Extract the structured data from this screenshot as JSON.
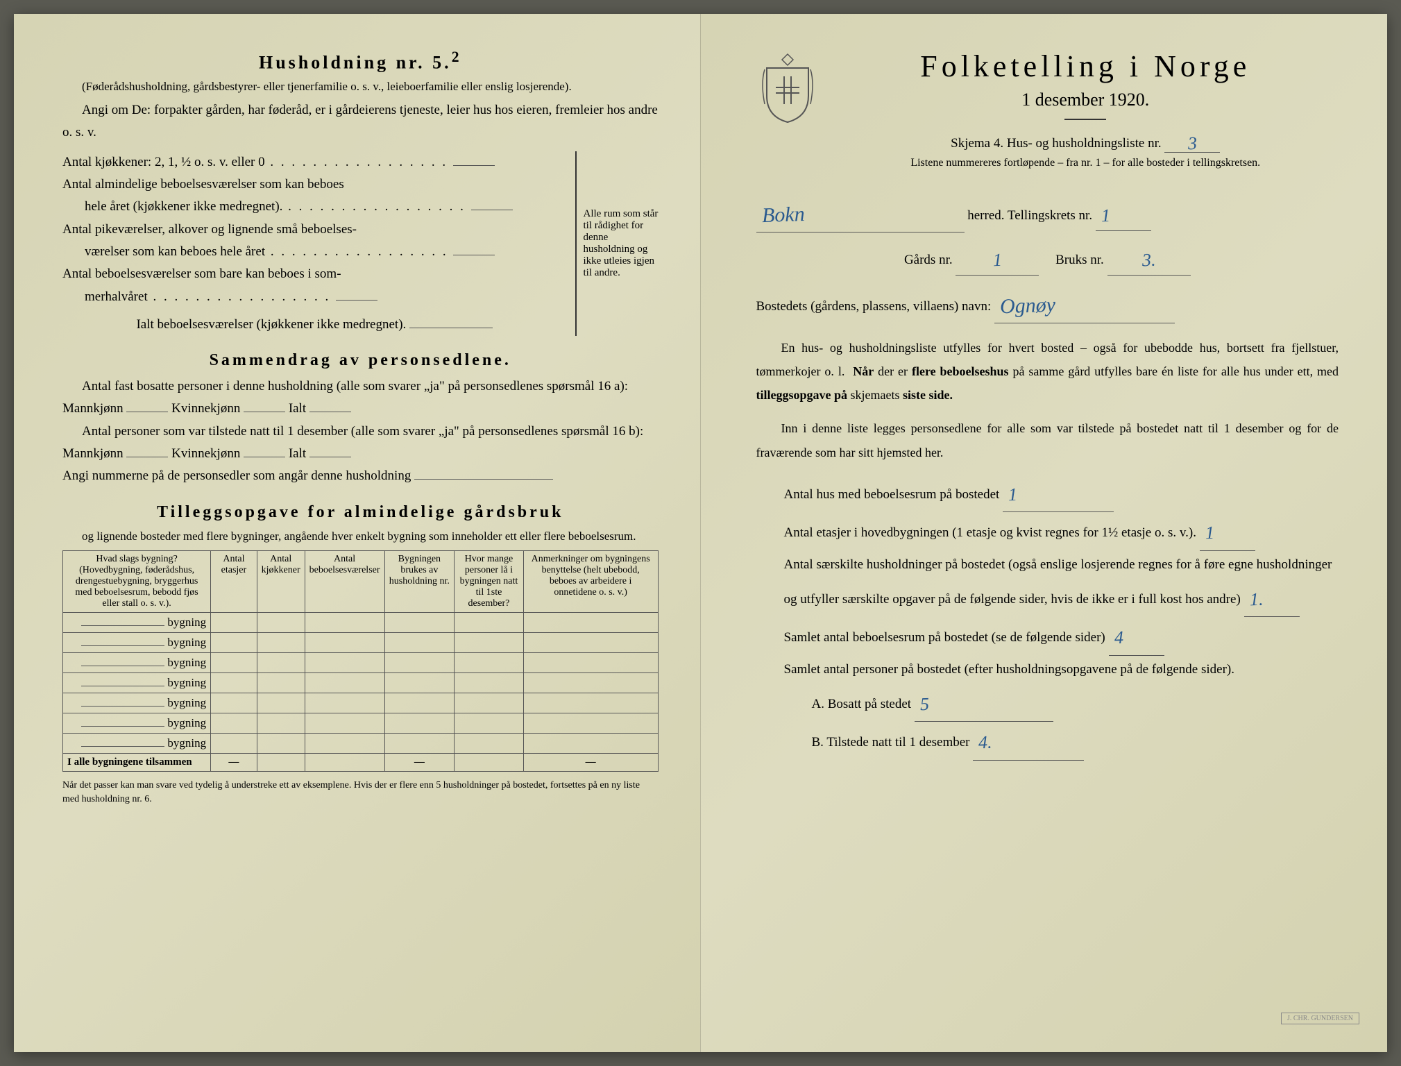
{
  "colors": {
    "paper": "#d8d6b8",
    "ink": "#1a1a1a",
    "handwriting": "#2a5a8f",
    "rule": "#555555"
  },
  "left": {
    "h1": "Husholdning nr. 5.",
    "h1_sup": "2",
    "h1_sub": "(Føderådshusholdning, gårdsbestyrer- eller tjenerfamilie o. s. v., leieboerfamilie eller enslig losjerende).",
    "para1": "Angi om De: forpakter gården, har føderåd, er i gårdeierens tjeneste, leier hus hos eieren, fremleier hos andre o. s. v.",
    "rows": {
      "r1": "Antal kjøkkener: 2, 1, ½ o. s. v. eller 0",
      "r2a": "Antal almindelige beboelsesværelser som kan beboes",
      "r2b": "hele året (kjøkkener ikke medregnet).",
      "r3a": "Antal pikeværelser, alkover og lignende små beboelses-",
      "r3b": "værelser som kan beboes hele året",
      "r4a": "Antal beboelsesværelser som bare kan beboes i som-",
      "r4b": "merhalvåret",
      "r5": "Ialt beboelsesværelser (kjøkkener ikke medregnet).",
      "bracket_note": "Alle rum som står til rådighet for denne husholdning og ikke utleies igjen til andre."
    },
    "h2": "Sammendrag av personsedlene.",
    "p2a": "Antal fast bosatte personer i denne husholdning (alle som svarer „ja\" på personsedlenes spørsmål 16 a): Mannkjønn",
    "p2a_k": "Kvinnekjønn",
    "p2a_i": "Ialt",
    "p2b": "Antal personer som var tilstede natt til 1 desember (alle som svarer „ja\" på personsedlenes spørsmål 16 b): Mannkjønn",
    "p2c": "Angi nummerne på de personsedler som angår denne husholdning",
    "h3": "Tilleggsopgave for almindelige gårdsbruk",
    "h3_sub": "og lignende bosteder med flere bygninger, angående hver enkelt bygning som inneholder ett eller flere beboelsesrum.",
    "table": {
      "cols": [
        "Hvad slags bygning?\n(Hovedbygning, føderådshus, drengestuebygning, bryggerhus med beboelsesrum, bebodd fjøs eller stall o. s. v.).",
        "Antal etasjer",
        "Antal kjøkkener",
        "Antal beboelsesværelser",
        "Bygningen brukes av husholdning nr.",
        "Hvor mange personer lå i bygningen natt til 1ste desember?",
        "Anmerkninger om bygningens benyttelse (helt ubebodd, beboes av arbeidere i onnetidene o. s. v.)"
      ],
      "row_label": "bygning",
      "n_rows": 7,
      "total_label": "I alle bygningene tilsammen"
    },
    "footnote": "Når det passer kan man svare ved tydelig å understreke ett av eksemplene.\nHvis der er flere enn 5 husholdninger på bostedet, fortsettes på en ny liste med husholdning nr. 6."
  },
  "right": {
    "title": "Folketelling i Norge",
    "date": "1 desember 1920.",
    "form_prefix": "Skjema 4.  Hus- og husholdningsliste nr.",
    "form_nr": "3",
    "form_note": "Listene nummereres fortløpende – fra nr. 1 – for alle bosteder i tellingskretsen.",
    "herred_value": "Bokn",
    "herred_label": "herred.   Tellingskrets nr.",
    "krets_nr": "1",
    "gards_label": "Gårds nr.",
    "gards_nr": "1",
    "bruks_label": "Bruks nr.",
    "bruks_nr": "3.",
    "bosted_label": "Bostedets (gårdens, plassens, villaens) navn:",
    "bosted_value": "Ognøy",
    "para1": "En hus- og husholdningsliste utfylles for hvert bosted – også for ubebodde hus, bortsett fra fjellstuer, tømmerkojer o. l.  Når der er flere beboelseshus på samme gård utfylles bare én liste for alle hus under ett, med tilleggsopgave på skjemaets siste side.",
    "para2": "Inn i denne liste legges personsedlene for alle som var tilstede på bostedet natt til 1 desember og for de fraværende som har sitt hjemsted her.",
    "q1": "Antal hus med beboelsesrum på bostedet",
    "a1": "1",
    "q2": "Antal etasjer i hovedbygningen (1 etasje og kvist regnes for 1½ etasje o. s. v.).",
    "a2": "1",
    "q3": "Antal særskilte husholdninger på bostedet (også enslige losjerende regnes for å føre egne husholdninger og utfyller særskilte opgaver på de følgende sider, hvis de ikke er i full kost hos andre)",
    "a3": "1.",
    "q4": "Samlet antal beboelsesrum på bostedet (se de følgende sider)",
    "a4": "4",
    "q5": "Samlet antal personer på bostedet (efter husholdningsopgavene på de følgende sider).",
    "q5a": "A.  Bosatt på stedet",
    "a5a": "5",
    "q5b": "B.  Tilstede natt til 1 desember",
    "a5b": "4."
  }
}
